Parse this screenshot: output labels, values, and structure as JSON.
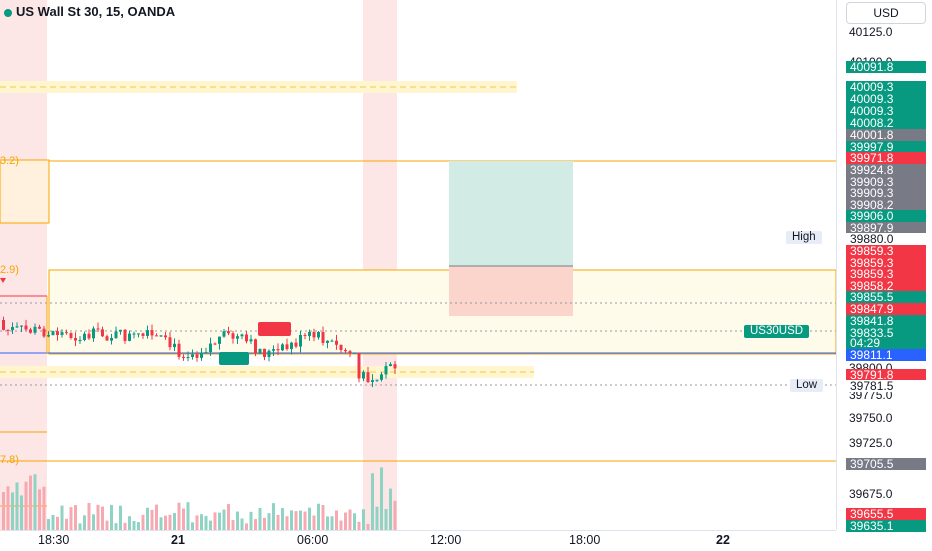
{
  "symbol_title": "US Wall St 30, 15, OANDA",
  "currency_button": "USD",
  "y_ticks": [
    "40125.0",
    "40100.0",
    "39800.0",
    "39775.0",
    "39750.0",
    "39725.0",
    "39675.0"
  ],
  "price_labels": [
    {
      "text": "40091.8",
      "color": "#089981"
    },
    {
      "text": "40009.3",
      "color": "#089981"
    },
    {
      "text": "40009.3",
      "color": "#089981"
    },
    {
      "text": "40009.3",
      "color": "#089981"
    },
    {
      "text": "40008.2",
      "color": "#089981"
    },
    {
      "text": "40001.8",
      "color": "#787b86"
    },
    {
      "text": "39997.9",
      "color": "#089981"
    },
    {
      "text": "39971.8",
      "color": "#f23645"
    },
    {
      "text": "39924.8",
      "color": "#787b86"
    },
    {
      "text": "39909.3",
      "color": "#787b86"
    },
    {
      "text": "39909.3",
      "color": "#787b86"
    },
    {
      "text": "39908.2",
      "color": "#787b86"
    },
    {
      "text": "39906.0",
      "color": "#089981"
    },
    {
      "text": "39897.9",
      "color": "#787b86"
    },
    {
      "text": "39880.0",
      "color": "#ffffff"
    },
    {
      "text": "39859.3",
      "color": "#f23645"
    },
    {
      "text": "39859.3",
      "color": "#f23645"
    },
    {
      "text": "39859.3",
      "color": "#f23645"
    },
    {
      "text": "39858.2",
      "color": "#f23645"
    },
    {
      "text": "39855.5",
      "color": "#089981"
    },
    {
      "text": "39847.9",
      "color": "#f23645"
    },
    {
      "text": "39841.8",
      "color": "#089981"
    },
    {
      "text": "39833.5",
      "color": "#089981"
    },
    {
      "text": "04:29",
      "color": "#089981"
    },
    {
      "text": "39811.1",
      "color": "#2962ff"
    },
    {
      "text": "39791.8",
      "color": "#f23645"
    },
    {
      "text": "39781.5",
      "color": "#ffffff"
    },
    {
      "text": "39705.5",
      "color": "#787b86"
    },
    {
      "text": "39655.5",
      "color": "#f23645"
    },
    {
      "text": "39635.1",
      "color": "#089981"
    }
  ],
  "tags": {
    "high": "High",
    "low": "Low",
    "symbol": "US30USD"
  },
  "left_labels": [
    "3.2)",
    "2.9)",
    "7.8)"
  ],
  "x_ticks": [
    "18:30",
    "21",
    "06:00",
    "12:00",
    "18:00",
    "22"
  ],
  "colors": {
    "up": "#089981",
    "down": "#f23645",
    "fib": "#f7a600",
    "session": "#fde2e2",
    "tp": "#cfe8e2",
    "sl": "#fcd5cc",
    "price": "#2962ff"
  }
}
